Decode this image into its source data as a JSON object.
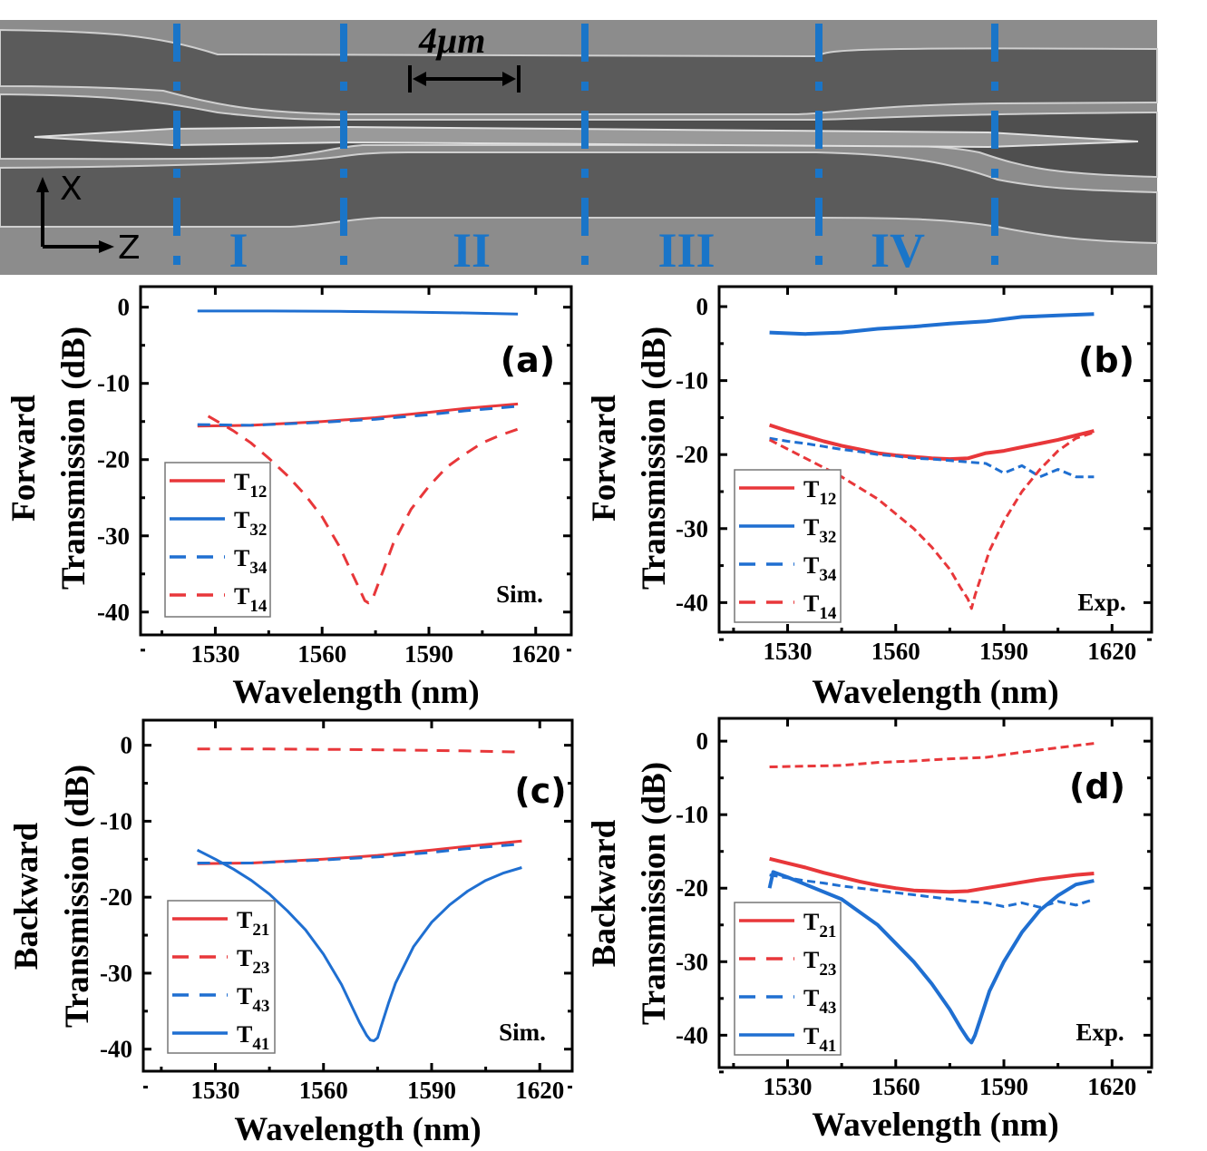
{
  "sem_image": {
    "scale_bar_label": "4μm",
    "axis_x_label": "X",
    "axis_z_label": "Z",
    "region_labels": [
      "I",
      "II",
      "III",
      "IV"
    ],
    "divider_color": "#1a75c8"
  },
  "colors": {
    "red": "#e8373a",
    "blue": "#1f6fd1"
  },
  "chart_data": [
    {
      "panel": "(a)",
      "type": "line",
      "note": "Sim.",
      "ylabel_line1": "Forward",
      "ylabel_line2": "Transmission (dB)",
      "xlabel": "Wavelength (nm)",
      "xlim": [
        1509,
        1630
      ],
      "ylim": [
        -43,
        2.7
      ],
      "xticks": [
        1530,
        1560,
        1590,
        1620
      ],
      "yticks": [
        0,
        -10,
        -20,
        -30,
        -40
      ],
      "legend_placement": "bottom-left",
      "series": [
        {
          "name": "T",
          "sub": "12",
          "color": "#e8373a",
          "dash": false,
          "x": [
            1525,
            1540,
            1560,
            1575,
            1590,
            1600,
            1615
          ],
          "y": [
            -15.6,
            -15.5,
            -15.0,
            -14.5,
            -13.8,
            -13.3,
            -12.7
          ]
        },
        {
          "name": "T",
          "sub": "32",
          "color": "#1f6fd1",
          "dash": false,
          "x": [
            1525,
            1545,
            1565,
            1585,
            1600,
            1615
          ],
          "y": [
            -0.5,
            -0.5,
            -0.55,
            -0.65,
            -0.75,
            -0.9
          ]
        },
        {
          "name": "T",
          "sub": "34",
          "color": "#1f6fd1",
          "dash": true,
          "x": [
            1525,
            1540,
            1560,
            1575,
            1590,
            1600,
            1615
          ],
          "y": [
            -15.4,
            -15.5,
            -15.1,
            -14.7,
            -14.1,
            -13.6,
            -13.0
          ]
        },
        {
          "name": "T",
          "sub": "14",
          "color": "#e8373a",
          "dash": true,
          "x": [
            1528,
            1535,
            1540,
            1545,
            1550,
            1555,
            1560,
            1565,
            1568,
            1570,
            1572,
            1573,
            1574,
            1576,
            1578,
            1580,
            1585,
            1590,
            1595,
            1600,
            1605,
            1610,
            1615
          ],
          "y": [
            -14.3,
            -16.2,
            -17.8,
            -19.8,
            -22,
            -24.5,
            -27.5,
            -31.5,
            -34.5,
            -36.5,
            -38.5,
            -38.8,
            -38.5,
            -36,
            -33.5,
            -31,
            -26.5,
            -23.5,
            -21,
            -19.3,
            -17.8,
            -16.8,
            -16.0
          ]
        }
      ]
    },
    {
      "panel": "(b)",
      "type": "line",
      "note": "Exp.",
      "ylabel_line1": "Forward",
      "ylabel_line2": "Transmission (dB)",
      "xlabel": "Wavelength (nm)",
      "xlim": [
        1511,
        1631
      ],
      "ylim": [
        -44,
        2.7
      ],
      "xticks": [
        1530,
        1560,
        1590,
        1620
      ],
      "yticks": [
        0,
        -10,
        -20,
        -30,
        -40
      ],
      "legend_placement": "bottom-left",
      "series": [
        {
          "name": "T",
          "sub": "12",
          "color": "#e8373a",
          "dash": false,
          "x": [
            1525,
            1530,
            1535,
            1540,
            1545,
            1550,
            1555,
            1560,
            1565,
            1570,
            1575,
            1580,
            1585,
            1590,
            1595,
            1600,
            1605,
            1610,
            1615
          ],
          "y": [
            -16,
            -16.8,
            -17.5,
            -18.2,
            -18.8,
            -19.3,
            -19.8,
            -20.1,
            -20.3,
            -20.5,
            -20.6,
            -20.5,
            -19.8,
            -19.5,
            -19.0,
            -18.5,
            -18.0,
            -17.4,
            -16.8
          ]
        },
        {
          "name": "T",
          "sub": "32",
          "color": "#1f6fd1",
          "dash": false,
          "x": [
            1525,
            1535,
            1545,
            1555,
            1565,
            1575,
            1585,
            1595,
            1605,
            1615
          ],
          "y": [
            -3.5,
            -3.7,
            -3.5,
            -3.0,
            -2.7,
            -2.3,
            -2.0,
            -1.4,
            -1.2,
            -1.0
          ]
        },
        {
          "name": "T",
          "sub": "34",
          "color": "#1f6fd1",
          "dash": true,
          "x": [
            1525,
            1530,
            1535,
            1540,
            1545,
            1550,
            1555,
            1560,
            1565,
            1570,
            1575,
            1580,
            1585,
            1590,
            1595,
            1600,
            1605,
            1610,
            1615
          ],
          "y": [
            -17.8,
            -18.2,
            -18.5,
            -18.9,
            -19.3,
            -19.6,
            -20,
            -20.2,
            -20.5,
            -20.6,
            -20.8,
            -21,
            -21.2,
            -22.5,
            -21.5,
            -23,
            -22,
            -23,
            -23
          ]
        },
        {
          "name": "T",
          "sub": "14",
          "color": "#e8373a",
          "dash": true,
          "x": [
            1525,
            1535,
            1545,
            1555,
            1565,
            1570,
            1575,
            1578,
            1580,
            1581,
            1582,
            1584,
            1586,
            1590,
            1595,
            1600,
            1605,
            1610,
            1615
          ],
          "y": [
            -18,
            -20.5,
            -23,
            -26,
            -30,
            -32.5,
            -35.5,
            -38,
            -39.5,
            -40.8,
            -39,
            -36,
            -33,
            -29,
            -25,
            -22,
            -19.5,
            -17.8,
            -17
          ]
        }
      ]
    },
    {
      "panel": "(c)",
      "type": "line",
      "note": "Sim.",
      "ylabel_line1": "Backward",
      "ylabel_line2": "Transmission (dB)",
      "xlabel": "Wavelength (nm)",
      "xlim": [
        1510,
        1629
      ],
      "ylim": [
        -42.9,
        3.3
      ],
      "xticks": [
        1530,
        1560,
        1590,
        1620
      ],
      "yticks": [
        0,
        -10,
        -20,
        -30,
        -40
      ],
      "legend_placement": "bottom-left",
      "series": [
        {
          "name": "T",
          "sub": "21",
          "color": "#e8373a",
          "dash": false,
          "x": [
            1525,
            1540,
            1560,
            1575,
            1590,
            1600,
            1615
          ],
          "y": [
            -15.6,
            -15.5,
            -15.0,
            -14.5,
            -13.8,
            -13.3,
            -12.6
          ]
        },
        {
          "name": "T",
          "sub": "23",
          "color": "#e8373a",
          "dash": true,
          "x": [
            1525,
            1545,
            1565,
            1585,
            1600,
            1615
          ],
          "y": [
            -0.5,
            -0.5,
            -0.55,
            -0.65,
            -0.75,
            -0.9
          ]
        },
        {
          "name": "T",
          "sub": "43",
          "color": "#1f6fd1",
          "dash": true,
          "x": [
            1525,
            1540,
            1560,
            1575,
            1590,
            1600,
            1615
          ],
          "y": [
            -15.5,
            -15.5,
            -15.1,
            -14.7,
            -14.1,
            -13.6,
            -13.0
          ]
        },
        {
          "name": "T",
          "sub": "41",
          "color": "#1f6fd1",
          "dash": false,
          "x": [
            1525,
            1530,
            1535,
            1540,
            1545,
            1550,
            1555,
            1560,
            1565,
            1568,
            1570,
            1572,
            1573,
            1574,
            1575,
            1576,
            1578,
            1580,
            1585,
            1590,
            1595,
            1600,
            1605,
            1610,
            1615
          ],
          "y": [
            -13.8,
            -15,
            -16.3,
            -17.8,
            -19.6,
            -21.8,
            -24.3,
            -27.5,
            -31.5,
            -34.5,
            -36.5,
            -38.2,
            -38.8,
            -38.9,
            -38.5,
            -37,
            -34,
            -31.3,
            -26.5,
            -23.3,
            -21,
            -19.2,
            -17.8,
            -16.8,
            -16.1
          ]
        }
      ]
    },
    {
      "panel": "(d)",
      "type": "line",
      "note": "Exp.",
      "ylabel_line1": "Backward",
      "ylabel_line2": "Transmission (dB)",
      "xlabel": "Wavelength (nm)",
      "xlim": [
        1511,
        1631
      ],
      "ylim": [
        -44.4,
        3.1
      ],
      "xticks": [
        1530,
        1560,
        1590,
        1620
      ],
      "yticks": [
        0,
        -10,
        -20,
        -30,
        -40
      ],
      "legend_placement": "bottom-left",
      "series": [
        {
          "name": "T",
          "sub": "21",
          "color": "#e8373a",
          "dash": false,
          "x": [
            1525,
            1530,
            1535,
            1540,
            1545,
            1550,
            1555,
            1560,
            1565,
            1570,
            1575,
            1580,
            1585,
            1590,
            1595,
            1600,
            1605,
            1610,
            1615
          ],
          "y": [
            -16,
            -16.6,
            -17.2,
            -17.9,
            -18.5,
            -19.1,
            -19.6,
            -20,
            -20.3,
            -20.4,
            -20.5,
            -20.4,
            -20,
            -19.6,
            -19.2,
            -18.8,
            -18.5,
            -18.2,
            -18.0
          ]
        },
        {
          "name": "T",
          "sub": "23",
          "color": "#e8373a",
          "dash": true,
          "x": [
            1525,
            1535,
            1545,
            1555,
            1565,
            1575,
            1585,
            1595,
            1605,
            1615
          ],
          "y": [
            -3.5,
            -3.4,
            -3.3,
            -2.9,
            -2.7,
            -2.4,
            -2.2,
            -1.5,
            -0.9,
            -0.3
          ]
        },
        {
          "name": "T",
          "sub": "43",
          "color": "#1f6fd1",
          "dash": true,
          "x": [
            1525,
            1530,
            1535,
            1540,
            1545,
            1550,
            1555,
            1560,
            1565,
            1570,
            1575,
            1580,
            1585,
            1590,
            1595,
            1600,
            1605,
            1610,
            1615
          ],
          "y": [
            -18.2,
            -18.6,
            -19,
            -19.3,
            -19.7,
            -20,
            -20.3,
            -20.6,
            -20.9,
            -21.2,
            -21.5,
            -21.8,
            -22,
            -22.5,
            -22,
            -22.6,
            -21.8,
            -22.3,
            -21.5
          ]
        },
        {
          "name": "T",
          "sub": "41",
          "color": "#1f6fd1",
          "dash": false,
          "x": [
            1525,
            1526,
            1530,
            1535,
            1545,
            1555,
            1565,
            1570,
            1575,
            1578,
            1580,
            1581,
            1582,
            1584,
            1586,
            1590,
            1595,
            1600,
            1605,
            1610,
            1615
          ],
          "y": [
            -20,
            -17.8,
            -18.5,
            -19.5,
            -21.5,
            -25,
            -30,
            -33,
            -36.5,
            -39,
            -40.5,
            -41,
            -40,
            -37,
            -34,
            -30,
            -26,
            -23,
            -21,
            -19.5,
            -19
          ]
        }
      ]
    }
  ]
}
